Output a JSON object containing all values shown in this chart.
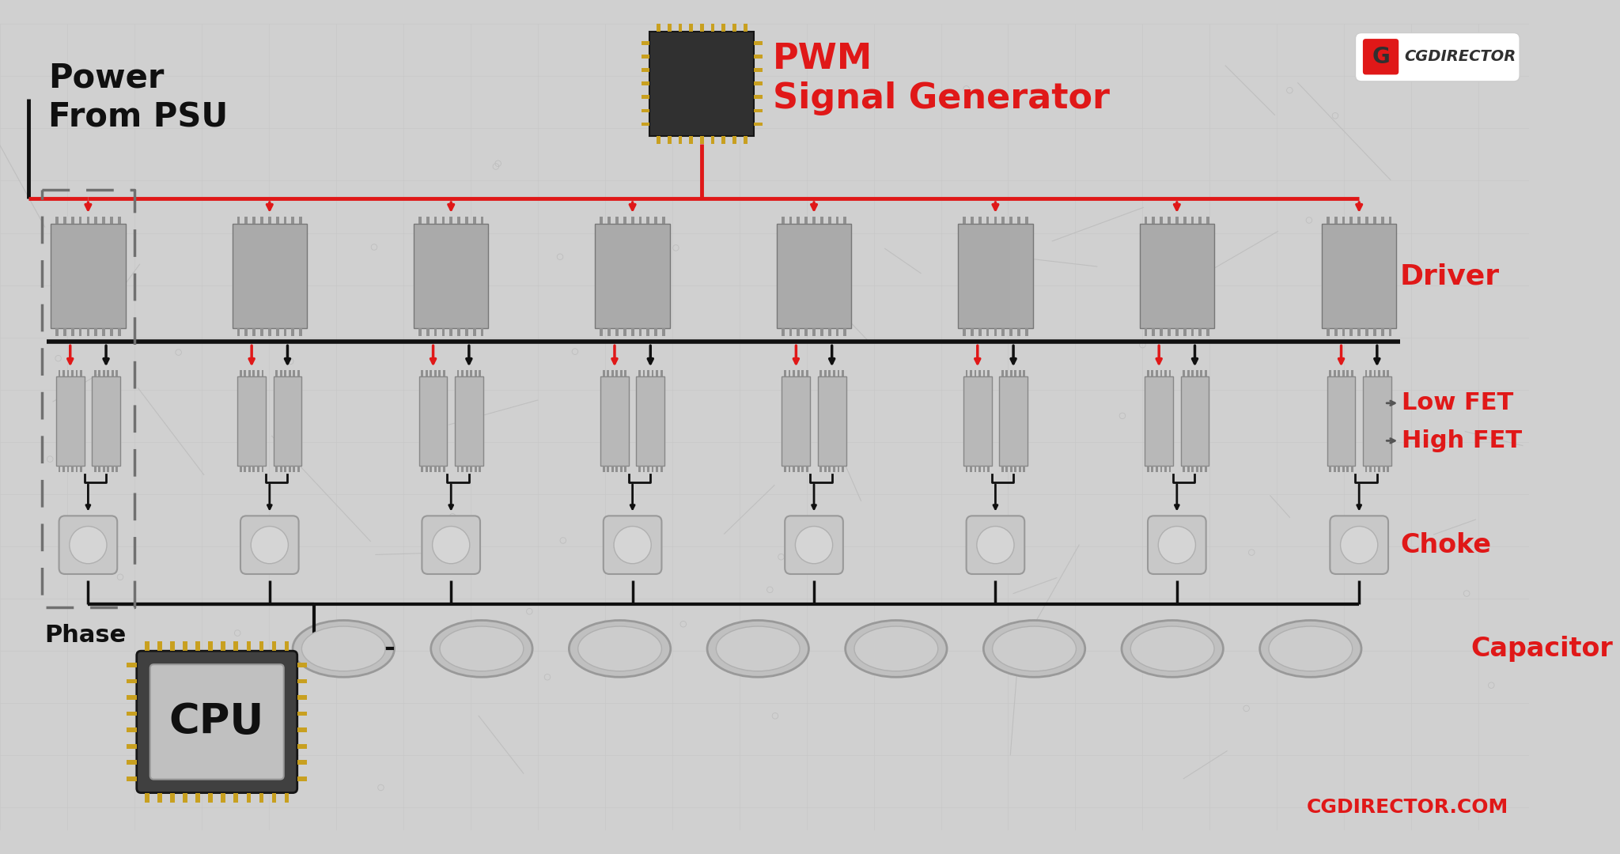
{
  "bg_color": "#d0d0d0",
  "chip_dark": "#303030",
  "chip_gray": "#aaaaaa",
  "chip_light": "#b8b8b8",
  "chip_lighter": "#c8c8c8",
  "pin_gold": "#c8a020",
  "pin_gray": "#909090",
  "red": "#e01818",
  "black": "#101010",
  "white": "#ffffff",
  "dashed_gray": "#707070",
  "arrow_gray": "#555555",
  "n_phases": 8,
  "pwm_label": "PWM\nSignal Generator",
  "psu_label": "Power\nFrom PSU",
  "driver_label": "Driver",
  "lowfet_label": "Low FET",
  "highfet_label": "High FET",
  "choke_label": "Choke",
  "cap_label": "Capacitor",
  "phase_label": "Phase",
  "cpu_label": "CPU",
  "brand_url": "CGDIRECTOR.COM"
}
